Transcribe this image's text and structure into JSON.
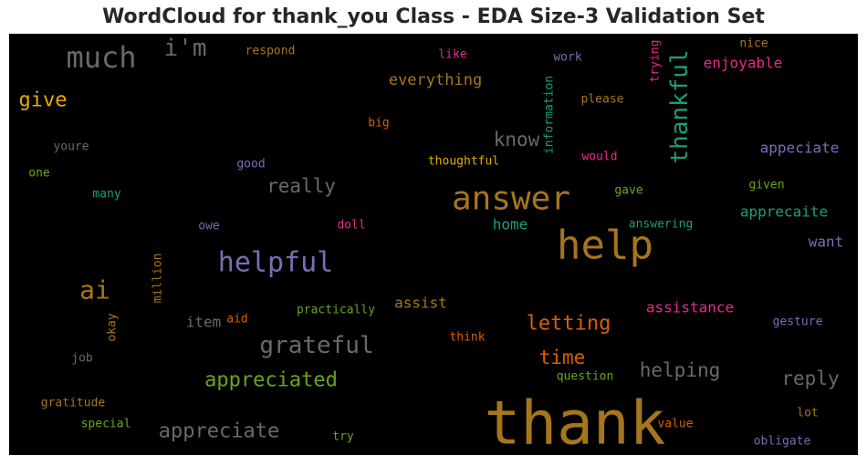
{
  "chart_data": {
    "type": "wordcloud",
    "title": "WordCloud for thank_you Class - EDA Size-3 Validation Set",
    "background": "#000000",
    "palette": {
      "gray": "#696969",
      "gold": "#A6761D",
      "purple": "#7570B3",
      "green": "#1B9E77",
      "magenta": "#E7298A",
      "orange": "#D95F02",
      "lime": "#66A61E",
      "yellow": "#E6AB02"
    },
    "words": [
      {
        "text": "thank",
        "color": "gold"
      },
      {
        "text": "help",
        "color": "gold"
      },
      {
        "text": "answer",
        "color": "gold"
      },
      {
        "text": "much",
        "color": "gray"
      },
      {
        "text": "i'm",
        "color": "gray"
      },
      {
        "text": "thankful",
        "color": "green"
      },
      {
        "text": "helpful",
        "color": "purple"
      },
      {
        "text": "grateful",
        "color": "gray"
      },
      {
        "text": "ai",
        "color": "gold"
      },
      {
        "text": "appreciated",
        "color": "lime"
      },
      {
        "text": "appreciate",
        "color": "gray"
      },
      {
        "text": "give",
        "color": "yellow"
      },
      {
        "text": "letting",
        "color": "orange"
      },
      {
        "text": "time",
        "color": "orange"
      },
      {
        "text": "helping",
        "color": "gray"
      },
      {
        "text": "reply",
        "color": "gray"
      },
      {
        "text": "really",
        "color": "gray"
      },
      {
        "text": "know",
        "color": "gray"
      },
      {
        "text": "everything",
        "color": "gold"
      },
      {
        "text": "enjoyable",
        "color": "magenta"
      },
      {
        "text": "assistance",
        "color": "magenta"
      },
      {
        "text": "appeciate",
        "color": "purple"
      },
      {
        "text": "apprecaite",
        "color": "green"
      },
      {
        "text": "assist",
        "color": "gold"
      },
      {
        "text": "home",
        "color": "green"
      },
      {
        "text": "want",
        "color": "purple"
      },
      {
        "text": "item",
        "color": "gray"
      },
      {
        "text": "respond",
        "color": "gold"
      },
      {
        "text": "like",
        "color": "magenta"
      },
      {
        "text": "work",
        "color": "purple"
      },
      {
        "text": "nice",
        "color": "gold"
      },
      {
        "text": "trying",
        "color": "magenta"
      },
      {
        "text": "please",
        "color": "gold"
      },
      {
        "text": "information",
        "color": "green"
      },
      {
        "text": "big",
        "color": "orange"
      },
      {
        "text": "youre",
        "color": "gray"
      },
      {
        "text": "one",
        "color": "lime"
      },
      {
        "text": "good",
        "color": "purple"
      },
      {
        "text": "thoughtful",
        "color": "yellow"
      },
      {
        "text": "would",
        "color": "magenta"
      },
      {
        "text": "many",
        "color": "green"
      },
      {
        "text": "gave",
        "color": "lime"
      },
      {
        "text": "given",
        "color": "lime"
      },
      {
        "text": "owe",
        "color": "purple"
      },
      {
        "text": "doll",
        "color": "magenta"
      },
      {
        "text": "answering",
        "color": "green"
      },
      {
        "text": "million",
        "color": "gold"
      },
      {
        "text": "practically",
        "color": "lime"
      },
      {
        "text": "aid",
        "color": "orange"
      },
      {
        "text": "okay",
        "color": "gold"
      },
      {
        "text": "gesture",
        "color": "purple"
      },
      {
        "text": "think",
        "color": "orange"
      },
      {
        "text": "job",
        "color": "gray"
      },
      {
        "text": "question",
        "color": "lime"
      },
      {
        "text": "gratitude",
        "color": "gold"
      },
      {
        "text": "lot",
        "color": "gold"
      },
      {
        "text": "special",
        "color": "lime"
      },
      {
        "text": "value",
        "color": "orange"
      },
      {
        "text": "try",
        "color": "lime"
      },
      {
        "text": "obligate",
        "color": "purple"
      }
    ]
  }
}
